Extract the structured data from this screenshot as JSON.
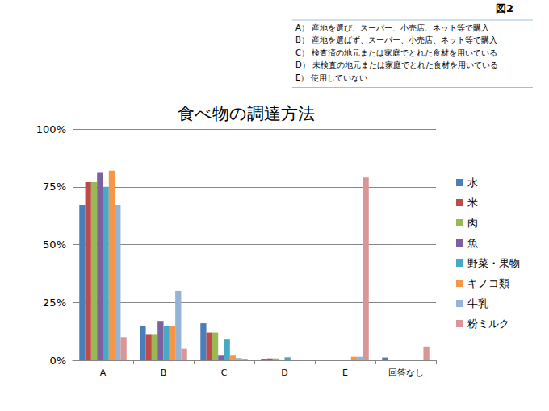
{
  "chart_data": {
    "type": "bar",
    "title": "食べ物の調達方法",
    "annotations": [
      "図2",
      "A） 産地を選び、スーパー、小売店、ネット等で購入",
      "B） 産地を選ばず、スーパー、小売店、ネット等で購入",
      "C） 検査済の地元または家庭でとれた食材を用いている",
      "D） 未検査の地元または家庭でとれた食材を用いている",
      "E） 使用していない"
    ],
    "categories": [
      "A",
      "B",
      "C",
      "D",
      "E",
      "回答なし"
    ],
    "series": [
      {
        "name": "水",
        "color": "#4a7ebb",
        "values": [
          67,
          15,
          16,
          0.5,
          0,
          1.2
        ]
      },
      {
        "name": "米",
        "color": "#be4b48",
        "values": [
          77,
          11,
          12,
          0.8,
          0,
          0
        ]
      },
      {
        "name": "肉",
        "color": "#98b954",
        "values": [
          77,
          11,
          12,
          0.8,
          0,
          0
        ]
      },
      {
        "name": "魚",
        "color": "#7d60a0",
        "values": [
          81,
          17,
          2,
          0,
          0,
          0
        ]
      },
      {
        "name": "野菜・果物",
        "color": "#46aac5",
        "values": [
          75,
          15,
          9,
          1.3,
          0,
          0
        ]
      },
      {
        "name": "キノコ類",
        "color": "#f79646",
        "values": [
          82,
          15,
          2,
          0,
          1.5,
          0
        ]
      },
      {
        "name": "牛乳",
        "color": "#95b3d7",
        "values": [
          67,
          30,
          1,
          0,
          1.5,
          0
        ]
      },
      {
        "name": "粉ミルク",
        "color": "#d99694",
        "values": [
          10,
          5,
          0.5,
          0,
          79,
          6
        ]
      }
    ],
    "ylim": [
      0,
      100
    ],
    "yticks": [
      {
        "value": 0,
        "label": "0%"
      },
      {
        "value": 25,
        "label": "25%"
      },
      {
        "value": 50,
        "label": "50%"
      },
      {
        "value": 75,
        "label": "75%"
      },
      {
        "value": 100,
        "label": "100%"
      }
    ],
    "grid": true,
    "legend": "right"
  }
}
